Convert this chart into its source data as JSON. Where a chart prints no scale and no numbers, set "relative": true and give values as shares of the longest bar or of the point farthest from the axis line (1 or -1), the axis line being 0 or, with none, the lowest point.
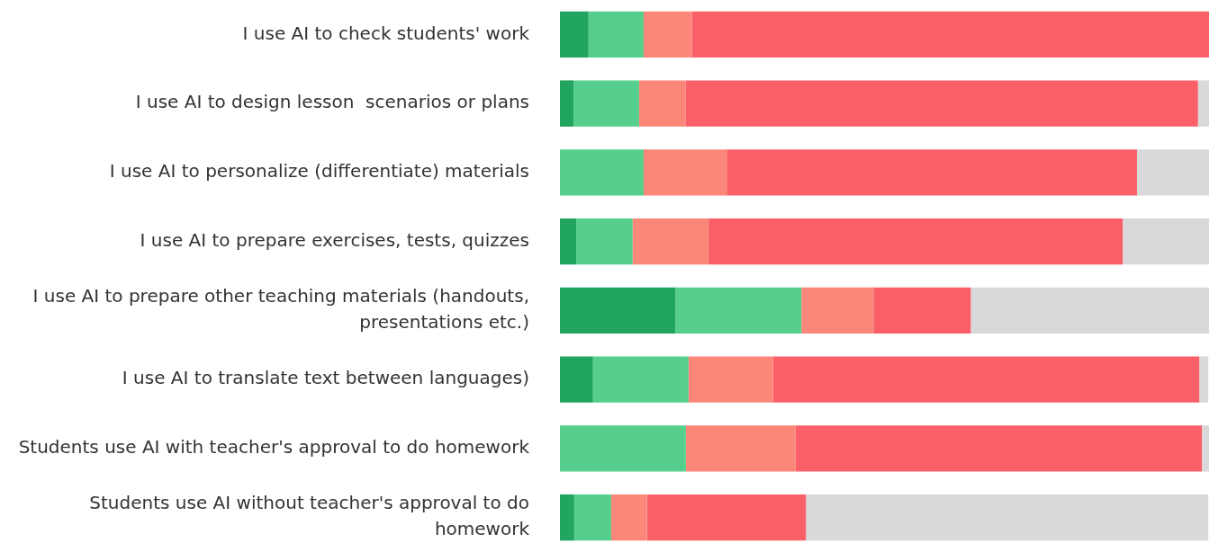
{
  "chart_data": {
    "type": "bar",
    "orientation": "horizontal",
    "stacked": true,
    "relative": true,
    "grid": false,
    "legend": false,
    "categories": [
      "I use AI to check students' work",
      "I use AI to design lesson  scenarios or plans",
      "I use AI to personalize (differentiate) materials",
      "I use AI to prepare exercises, tests, quizzes",
      "I use AI to prepare other teaching materials (handouts, presentations etc.)",
      "I use AI to translate text between languages)",
      "Students use AI with teacher's approval to do homework",
      "Students use AI without teacher's approval to do homework"
    ],
    "series": [
      {
        "color": "#22a55e",
        "values": [
          0.044,
          0.021,
          0,
          0.025,
          0.178,
          0.051,
          0,
          0.022
        ]
      },
      {
        "color": "#57cf8c",
        "values": [
          0.085,
          0.101,
          0.129,
          0.087,
          0.194,
          0.147,
          0.194,
          0.057
        ]
      },
      {
        "color": "#fb877a",
        "values": [
          0.074,
          0.072,
          0.129,
          0.117,
          0.111,
          0.13,
          0.169,
          0.055
        ]
      },
      {
        "color": "#fb6069",
        "values": [
          0.797,
          0.789,
          0.631,
          0.638,
          0.15,
          0.657,
          0.626,
          0.245
        ]
      },
      {
        "color": "#d9d9d9",
        "values": [
          0,
          0.017,
          0.111,
          0.133,
          0.367,
          0.014,
          0.011,
          0.62
        ]
      }
    ]
  }
}
